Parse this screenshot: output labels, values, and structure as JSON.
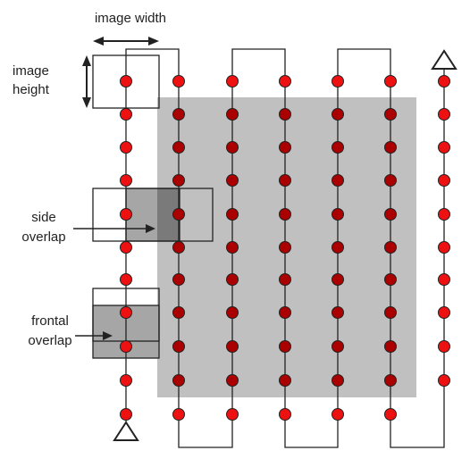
{
  "labels": {
    "image_width": "image width",
    "image_height_line1": "image",
    "image_height_line2": "height",
    "side_overlap_line1": "side",
    "side_overlap_line2": "overlap",
    "frontal_overlap_line1": "frontal",
    "frontal_overlap_line2": "overlap"
  },
  "colors": {
    "point_fill": "#ee1111",
    "point_fill_inside": "#aa0000",
    "area_fill": "#c0c0c0",
    "overlap_fill": "#a6a6a6",
    "overlap_dark_fill": "#7a7a7a",
    "line": "#222222"
  },
  "icons": {
    "start": "triangle-icon",
    "end": "triangle-icon"
  }
}
